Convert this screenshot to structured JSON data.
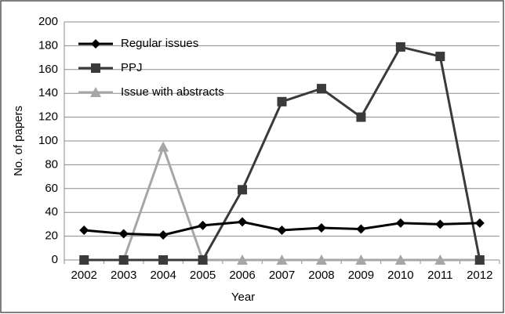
{
  "chart_data": {
    "type": "line",
    "xlabel": "Year",
    "ylabel": "No. of papers",
    "categories": [
      "2002",
      "2003",
      "2004",
      "2005",
      "2006",
      "2007",
      "2008",
      "2009",
      "2010",
      "2011",
      "2012"
    ],
    "series": [
      {
        "name": "Regular issues",
        "color": "#000000",
        "marker": "diamond",
        "values": [
          25,
          22,
          21,
          29,
          32,
          25,
          27,
          26,
          31,
          30,
          31
        ]
      },
      {
        "name": "PPJ",
        "color": "#3a3a3a",
        "marker": "square",
        "values": [
          0,
          0,
          0,
          0,
          59,
          133,
          144,
          120,
          179,
          171,
          0
        ]
      },
      {
        "name": "Issue with abstracts",
        "color": "#a6a6a6",
        "marker": "triangle",
        "values": [
          0,
          0,
          95,
          0,
          0,
          0,
          0,
          0,
          0,
          0,
          0
        ]
      }
    ],
    "ylim": [
      0,
      200
    ],
    "yticks": [
      0,
      20,
      40,
      60,
      80,
      100,
      120,
      140,
      160,
      180,
      200
    ],
    "grid": true,
    "legend": "upper left"
  }
}
